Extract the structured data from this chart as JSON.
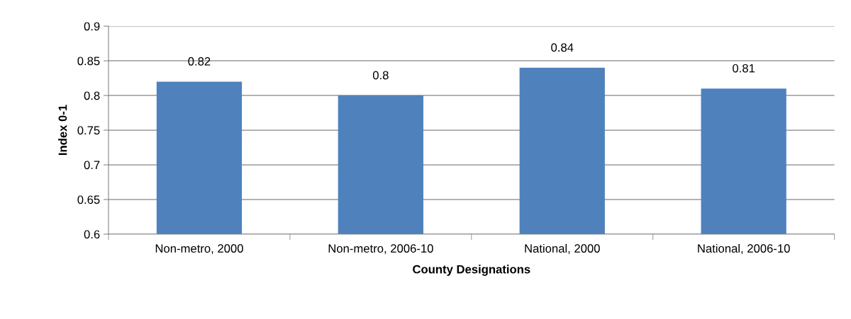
{
  "chart_data": {
    "type": "bar",
    "xlabel": "County Designations",
    "ylabel": "Index 0-1",
    "categories": [
      "Non-metro, 2000",
      "Non-metro, 2006-10",
      "National, 2000",
      "National, 2006-10"
    ],
    "values": [
      0.82,
      0.8,
      0.84,
      0.81
    ],
    "color": "#4f81bd",
    "ylim": [
      0.6,
      0.9
    ],
    "yticks": [
      0.6,
      0.65,
      0.7,
      0.75,
      0.8,
      0.85,
      0.9
    ],
    "grid": "y",
    "data_labels": true
  }
}
